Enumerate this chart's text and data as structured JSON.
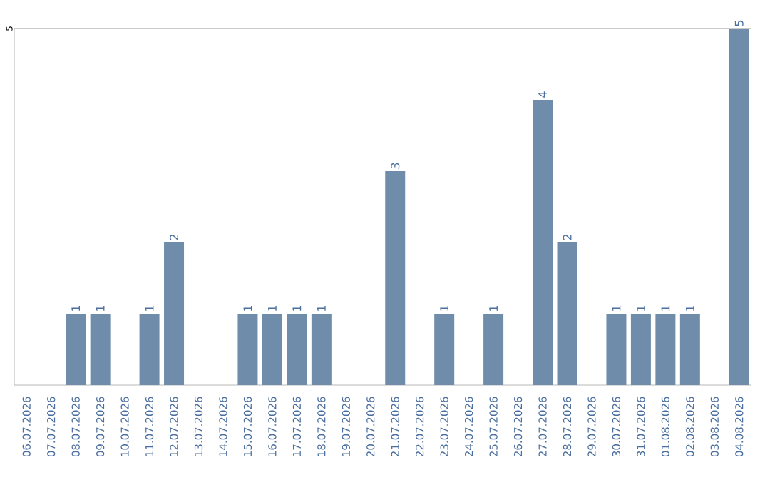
{
  "chart_data": {
    "type": "bar",
    "categories": [
      "06.07.2026",
      "07.07.2026",
      "08.07.2026",
      "09.07.2026",
      "10.07.2026",
      "11.07.2026",
      "12.07.2026",
      "13.07.2026",
      "14.07.2026",
      "15.07.2026",
      "16.07.2026",
      "17.07.2026",
      "18.07.2026",
      "19.07.2026",
      "20.07.2026",
      "21.07.2026",
      "22.07.2026",
      "23.07.2026",
      "24.07.2026",
      "25.07.2026",
      "26.07.2026",
      "27.07.2026",
      "28.07.2026",
      "29.07.2026",
      "30.07.2026",
      "31.07.2026",
      "01.08.2026",
      "02.08.2026",
      "03.08.2026",
      "04.08.2026"
    ],
    "values": [
      0,
      0,
      1,
      1,
      0,
      1,
      2,
      0,
      0,
      1,
      1,
      1,
      1,
      0,
      0,
      3,
      0,
      1,
      0,
      1,
      0,
      4,
      2,
      0,
      1,
      1,
      1,
      1,
      0,
      5
    ],
    "value_labels": [
      null,
      null,
      "1",
      "1",
      null,
      "1",
      "2",
      null,
      null,
      "1",
      "1",
      "1",
      "1",
      null,
      null,
      "3",
      null,
      "1",
      null,
      "1",
      null,
      "4",
      "2",
      null,
      "1",
      "1",
      "1",
      "1",
      null,
      "5"
    ],
    "color": "#6f8dab",
    "ylim": [
      0,
      5
    ],
    "yticks": [
      5
    ]
  }
}
